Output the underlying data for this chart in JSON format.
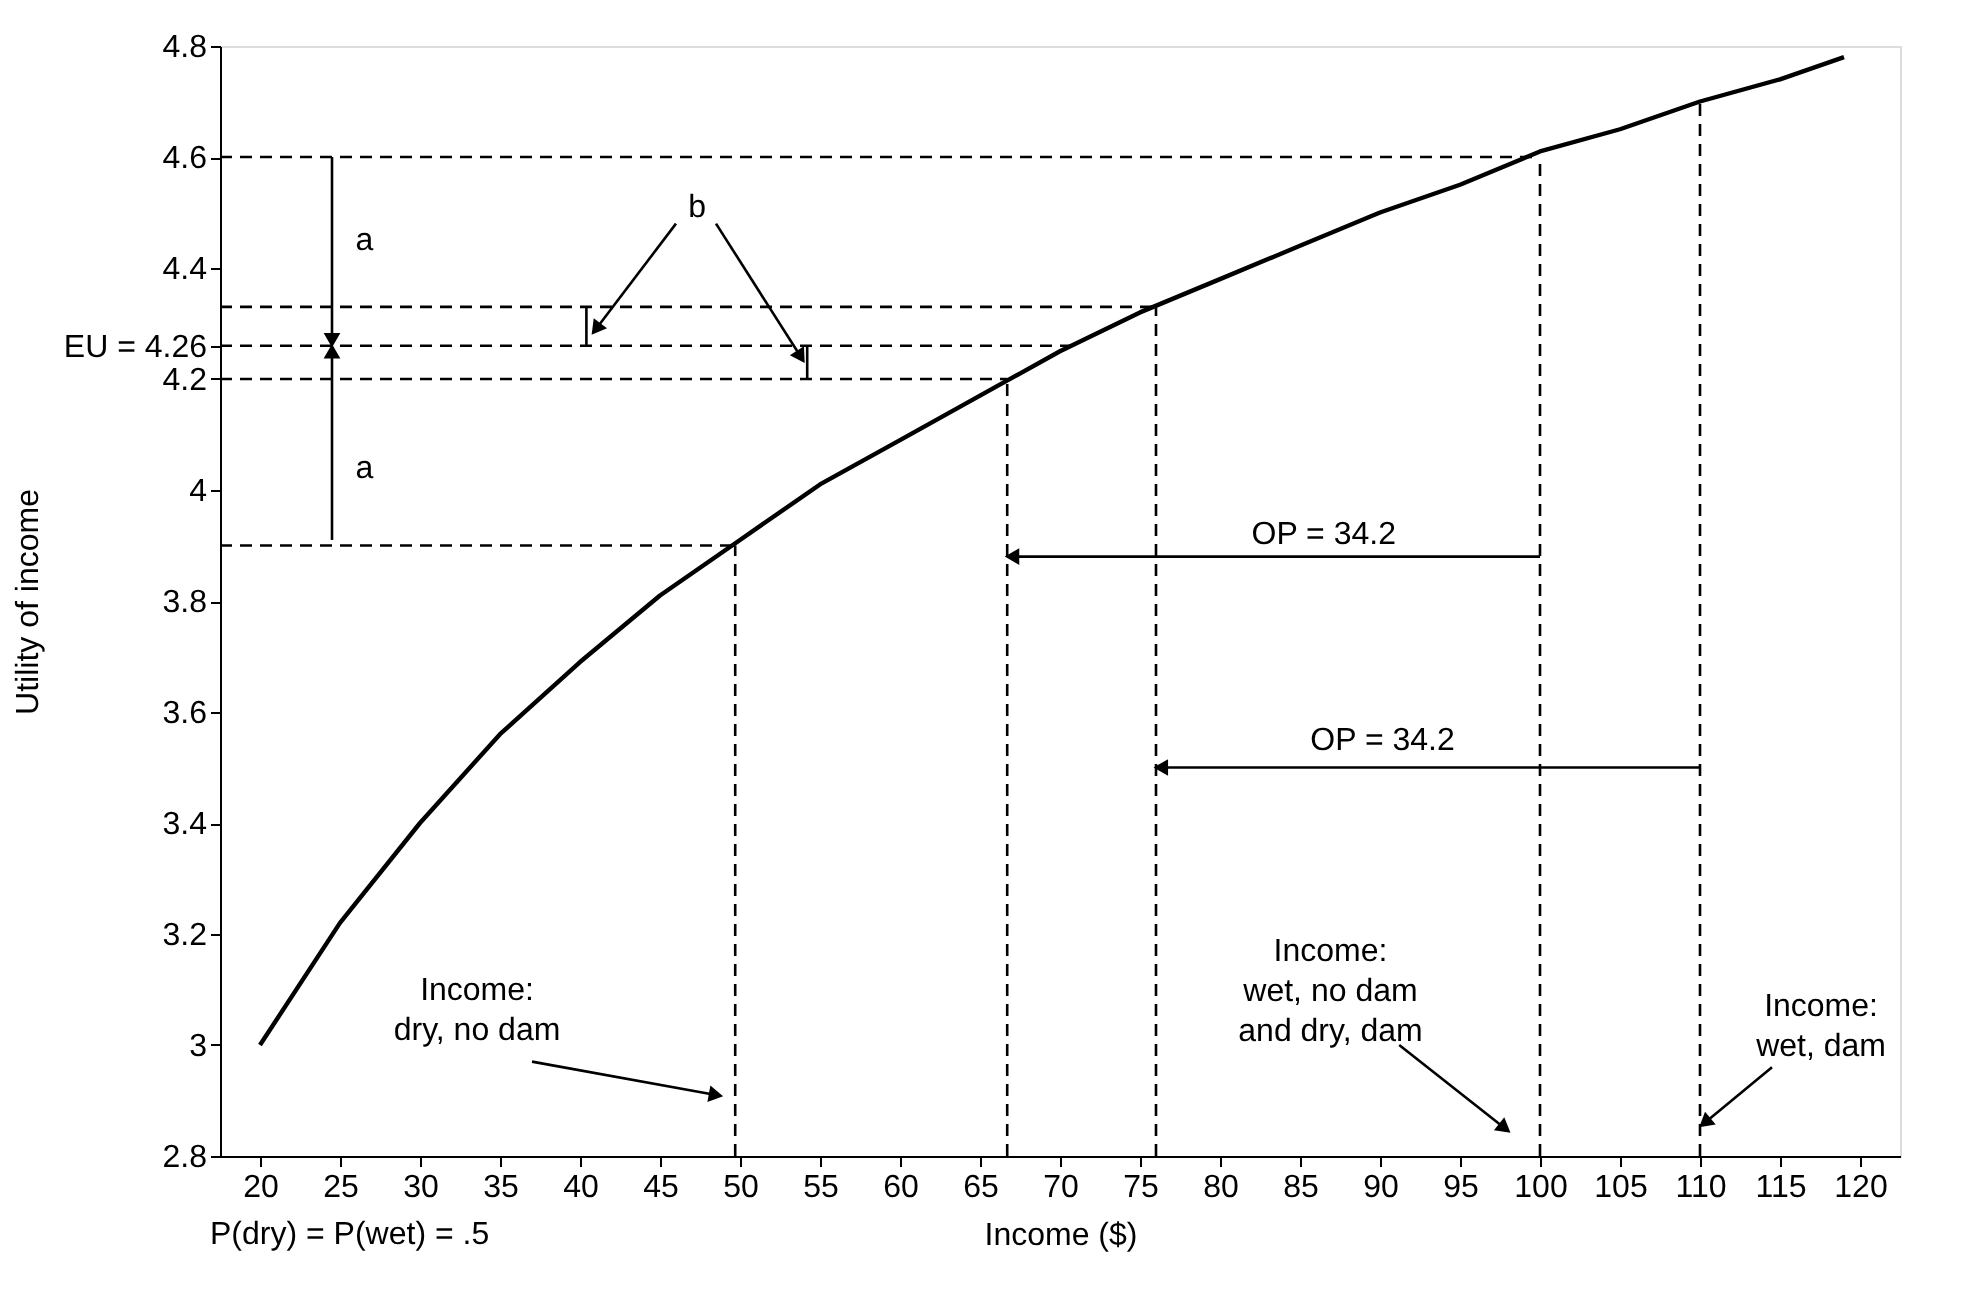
{
  "chart_data": {
    "type": "line",
    "xlabel": "Income ($)",
    "ylabel": "Utility of income",
    "xlim": [
      17.5,
      122.5
    ],
    "ylim": [
      2.8,
      4.8
    ],
    "xticks": [
      20,
      25,
      30,
      35,
      40,
      45,
      50,
      55,
      60,
      65,
      70,
      75,
      80,
      85,
      90,
      95,
      100,
      105,
      110,
      115,
      120
    ],
    "yticks": [
      2.8,
      3,
      3.2,
      3.4,
      3.6,
      3.8,
      4,
      {
        "value": 4.26,
        "label": "EU = 4.26"
      },
      4.2,
      4.4,
      4.6,
      4.8
    ],
    "series": [
      {
        "color": "#000000",
        "line_style": "solid",
        "marker": "none",
        "x": [
          20,
          25,
          30,
          35,
          40,
          45,
          50,
          55,
          60,
          65,
          70,
          75,
          80,
          85,
          90,
          95,
          100,
          105,
          110,
          115,
          119
        ],
        "values": [
          3.0,
          3.22,
          3.4,
          3.56,
          3.69,
          3.81,
          3.91,
          4.01,
          4.09,
          4.17,
          4.25,
          4.32,
          4.38,
          4.44,
          4.5,
          4.55,
          4.61,
          4.65,
          4.7,
          4.74,
          4.78
        ]
      },
      {
        "color": "#000000",
        "line_style": "dashed",
        "marker": "none",
        "x": [
          17.5,
          100
        ],
        "values": [
          4.6,
          4.6
        ]
      },
      {
        "color": "#000000",
        "line_style": "dashed",
        "marker": "none",
        "x": [
          17.5,
          76
        ],
        "values": [
          4.33,
          4.33
        ]
      },
      {
        "color": "#000000",
        "line_style": "dashed",
        "marker": "none",
        "x": [
          17.5,
          71
        ],
        "values": [
          4.26,
          4.26
        ]
      },
      {
        "color": "#000000",
        "line_style": "dashed",
        "marker": "none",
        "x": [
          17.5,
          66.7
        ],
        "values": [
          4.2,
          4.2
        ]
      },
      {
        "color": "#000000",
        "line_style": "dashed",
        "marker": "none",
        "x": [
          17.5,
          49.7
        ],
        "values": [
          3.9,
          3.9
        ]
      },
      {
        "color": "#000000",
        "line_style": "dashed",
        "marker": "none",
        "x": [
          49.7,
          49.7
        ],
        "values": [
          2.8,
          3.9
        ]
      },
      {
        "color": "#000000",
        "line_style": "dashed",
        "marker": "none",
        "x": [
          66.7,
          66.7
        ],
        "values": [
          2.8,
          4.2
        ]
      },
      {
        "color": "#000000",
        "line_style": "dashed",
        "marker": "none",
        "x": [
          76,
          76
        ],
        "values": [
          2.8,
          4.33
        ]
      },
      {
        "color": "#000000",
        "line_style": "dashed",
        "marker": "none",
        "x": [
          100,
          100
        ],
        "values": [
          2.8,
          4.6
        ]
      },
      {
        "color": "#000000",
        "line_style": "dashed",
        "marker": "none",
        "x": [
          110,
          110
        ],
        "values": [
          2.8,
          4.7
        ]
      },
      {
        "color": "#000000",
        "line_style": "solid",
        "marker": "none",
        "x": [
          40.4,
          40.4
        ],
        "values": [
          4.26,
          4.33
        ]
      },
      {
        "color": "#000000",
        "line_style": "solid",
        "marker": "none",
        "x": [
          54.2,
          54.2
        ],
        "values": [
          4.2,
          4.26
        ]
      },
      {
        "color": "#000000",
        "line_style": "solid",
        "marker": "triangle",
        "x": [
          24.5,
          24.5
        ],
        "values": [
          4.6,
          4.27
        ]
      },
      {
        "color": "#000000",
        "line_style": "solid",
        "marker": "triangle",
        "x": [
          24.5,
          24.5
        ],
        "values": [
          3.91,
          4.25
        ]
      },
      {
        "color": "#000000",
        "line_style": "solid",
        "marker": "triangle",
        "x": [
          46,
          41
        ],
        "values": [
          4.48,
          4.29
        ]
      },
      {
        "color": "#000000",
        "line_style": "solid",
        "marker": "triangle",
        "x": [
          48.5,
          53.8
        ],
        "values": [
          4.48,
          4.24
        ]
      },
      {
        "color": "#000000",
        "line_style": "solid",
        "marker": "triangle",
        "x": [
          100,
          67
        ],
        "values": [
          3.88,
          3.88
        ]
      },
      {
        "color": "#000000",
        "line_style": "solid",
        "marker": "triangle",
        "x": [
          110,
          76.3
        ],
        "values": [
          3.5,
          3.5
        ]
      },
      {
        "color": "#000000",
        "line_style": "solid",
        "marker": "triangle",
        "x": [
          37,
          48.5
        ],
        "values": [
          2.97,
          2.91
        ]
      },
      {
        "color": "#000000",
        "line_style": "solid",
        "marker": "triangle",
        "x": [
          91.2,
          97.8
        ],
        "values": [
          3.0,
          2.85
        ]
      },
      {
        "color": "#000000",
        "line_style": "solid",
        "marker": "triangle",
        "x": [
          114.5,
          110.3
        ],
        "values": [
          2.96,
          2.86
        ]
      }
    ],
    "annotations": [
      "Income:\ndry, no dam",
      "Income:\nwet, no dam\nand dry, dam",
      "Income:\nwet, dam",
      "a",
      "a",
      "b",
      "OP = 34.2",
      "OP = 34.2",
      "P(dry) = P(wet) = .5"
    ]
  }
}
